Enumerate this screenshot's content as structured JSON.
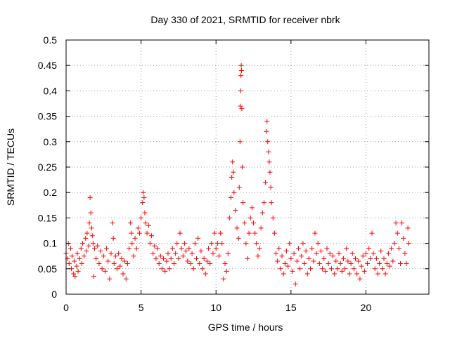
{
  "chart_data": {
    "type": "scatter",
    "title": "Day 330 of 2021, SRMTID for receiver nbrk",
    "xlabel": "GPS time / hours",
    "ylabel": "SRMTID / TECUs",
    "xlim": [
      0,
      24.2
    ],
    "ylim": [
      0,
      0.5
    ],
    "xticks": [
      0,
      5,
      10,
      15,
      20
    ],
    "xtick_labels": [
      "0",
      "5",
      "10",
      "15",
      "20"
    ],
    "yticks": [
      0,
      0.05,
      0.1,
      0.15,
      0.2,
      0.25,
      0.3,
      0.35,
      0.4,
      0.45,
      0.5
    ],
    "ytick_labels": [
      "0",
      "0.05",
      "0.1",
      "0.15",
      "0.2",
      "0.25",
      "0.3",
      "0.35",
      "0.4",
      "0.45",
      "0.5"
    ],
    "grid": true,
    "marker": "+",
    "color": "#ff0000",
    "series": [
      {
        "name": "SRMTID",
        "points": [
          [
            0.0,
            0.08
          ],
          [
            0.1,
            0.07
          ],
          [
            0.15,
            0.1
          ],
          [
            0.2,
            0.06
          ],
          [
            0.3,
            0.09
          ],
          [
            0.35,
            0.05
          ],
          [
            0.4,
            0.075
          ],
          [
            0.5,
            0.04
          ],
          [
            0.55,
            0.065
          ],
          [
            0.6,
            0.035
          ],
          [
            0.7,
            0.055
          ],
          [
            0.75,
            0.08
          ],
          [
            0.8,
            0.045
          ],
          [
            0.9,
            0.07
          ],
          [
            1.0,
            0.09
          ],
          [
            1.05,
            0.06
          ],
          [
            1.1,
            0.1
          ],
          [
            1.2,
            0.075
          ],
          [
            1.3,
            0.11
          ],
          [
            1.35,
            0.085
          ],
          [
            1.4,
            0.12
          ],
          [
            1.5,
            0.095
          ],
          [
            1.55,
            0.14
          ],
          [
            1.6,
            0.19
          ],
          [
            1.65,
            0.16
          ],
          [
            1.7,
            0.13
          ],
          [
            1.75,
            0.115
          ],
          [
            1.8,
            0.1
          ],
          [
            1.85,
            0.035
          ],
          [
            1.9,
            0.09
          ],
          [
            2.0,
            0.07
          ],
          [
            2.1,
            0.095
          ],
          [
            2.2,
            0.06
          ],
          [
            2.3,
            0.085
          ],
          [
            2.4,
            0.05
          ],
          [
            2.5,
            0.075
          ],
          [
            2.6,
            0.045
          ],
          [
            2.7,
            0.09
          ],
          [
            2.8,
            0.065
          ],
          [
            2.9,
            0.03
          ],
          [
            3.0,
            0.08
          ],
          [
            3.1,
            0.14
          ],
          [
            3.15,
            0.11
          ],
          [
            3.2,
            0.06
          ],
          [
            3.3,
            0.075
          ],
          [
            3.4,
            0.05
          ],
          [
            3.5,
            0.08
          ],
          [
            3.6,
            0.055
          ],
          [
            3.7,
            0.07
          ],
          [
            3.8,
            0.04
          ],
          [
            3.9,
            0.065
          ],
          [
            4.0,
            0.03
          ],
          [
            4.1,
            0.06
          ],
          [
            4.2,
            0.09
          ],
          [
            4.3,
            0.14
          ],
          [
            4.35,
            0.12
          ],
          [
            4.4,
            0.1
          ],
          [
            4.5,
            0.075
          ],
          [
            4.6,
            0.11
          ],
          [
            4.7,
            0.09
          ],
          [
            4.8,
            0.13
          ],
          [
            4.9,
            0.12
          ],
          [
            5.0,
            0.15
          ],
          [
            5.1,
            0.18
          ],
          [
            5.15,
            0.2
          ],
          [
            5.2,
            0.19
          ],
          [
            5.25,
            0.16
          ],
          [
            5.3,
            0.14
          ],
          [
            5.4,
            0.12
          ],
          [
            5.5,
            0.135
          ],
          [
            5.6,
            0.1
          ],
          [
            5.7,
            0.115
          ],
          [
            5.8,
            0.08
          ],
          [
            5.9,
            0.095
          ],
          [
            6.0,
            0.07
          ],
          [
            6.1,
            0.09
          ],
          [
            6.2,
            0.06
          ],
          [
            6.3,
            0.075
          ],
          [
            6.4,
            0.05
          ],
          [
            6.5,
            0.07
          ],
          [
            6.6,
            0.045
          ],
          [
            6.7,
            0.065
          ],
          [
            6.8,
            0.08
          ],
          [
            6.9,
            0.05
          ],
          [
            7.0,
            0.07
          ],
          [
            7.1,
            0.09
          ],
          [
            7.2,
            0.06
          ],
          [
            7.3,
            0.08
          ],
          [
            7.4,
            0.1
          ],
          [
            7.5,
            0.07
          ],
          [
            7.6,
            0.12
          ],
          [
            7.7,
            0.09
          ],
          [
            7.8,
            0.075
          ],
          [
            7.9,
            0.1
          ],
          [
            8.0,
            0.085
          ],
          [
            8.1,
            0.065
          ],
          [
            8.2,
            0.09
          ],
          [
            8.3,
            0.06
          ],
          [
            8.4,
            0.08
          ],
          [
            8.5,
            0.05
          ],
          [
            8.6,
            0.1
          ],
          [
            8.7,
            0.07
          ],
          [
            8.8,
            0.11
          ],
          [
            8.9,
            0.06
          ],
          [
            9.0,
            0.085
          ],
          [
            9.1,
            0.05
          ],
          [
            9.2,
            0.07
          ],
          [
            9.3,
            0.04
          ],
          [
            9.4,
            0.065
          ],
          [
            9.5,
            0.09
          ],
          [
            9.6,
            0.06
          ],
          [
            9.7,
            0.1
          ],
          [
            9.8,
            0.08
          ],
          [
            9.9,
            0.12
          ],
          [
            10.0,
            0.09
          ],
          [
            10.1,
            0.1
          ],
          [
            10.2,
            0.075
          ],
          [
            10.3,
            0.12
          ],
          [
            10.4,
            0.1
          ],
          [
            10.5,
            0.03
          ],
          [
            10.6,
            0.06
          ],
          [
            10.7,
            0.045
          ],
          [
            10.8,
            0.08
          ],
          [
            10.9,
            0.15
          ],
          [
            11.0,
            0.19
          ],
          [
            11.05,
            0.23
          ],
          [
            11.1,
            0.26
          ],
          [
            11.15,
            0.24
          ],
          [
            11.2,
            0.2
          ],
          [
            11.3,
            0.165
          ],
          [
            11.4,
            0.13
          ],
          [
            11.5,
            0.11
          ],
          [
            11.55,
            0.21
          ],
          [
            11.6,
            0.3
          ],
          [
            11.62,
            0.37
          ],
          [
            11.64,
            0.4
          ],
          [
            11.66,
            0.43
          ],
          [
            11.68,
            0.45
          ],
          [
            11.7,
            0.44
          ],
          [
            11.72,
            0.365
          ],
          [
            11.75,
            0.25
          ],
          [
            11.8,
            0.18
          ],
          [
            11.9,
            0.14
          ],
          [
            12.0,
            0.1
          ],
          [
            12.1,
            0.07
          ],
          [
            12.2,
            0.12
          ],
          [
            12.3,
            0.15
          ],
          [
            12.4,
            0.17
          ],
          [
            12.5,
            0.14
          ],
          [
            12.6,
            0.12
          ],
          [
            12.7,
            0.1
          ],
          [
            12.8,
            0.075
          ],
          [
            12.9,
            0.09
          ],
          [
            13.0,
            0.13
          ],
          [
            13.1,
            0.16
          ],
          [
            13.2,
            0.18
          ],
          [
            13.3,
            0.22
          ],
          [
            13.35,
            0.32
          ],
          [
            13.4,
            0.34
          ],
          [
            13.45,
            0.3
          ],
          [
            13.5,
            0.28
          ],
          [
            13.55,
            0.26
          ],
          [
            13.6,
            0.24
          ],
          [
            13.65,
            0.21
          ],
          [
            13.7,
            0.18
          ],
          [
            13.8,
            0.15
          ],
          [
            13.9,
            0.12
          ],
          [
            14.0,
            0.08
          ],
          [
            14.1,
            0.065
          ],
          [
            14.2,
            0.09
          ],
          [
            14.3,
            0.05
          ],
          [
            14.4,
            0.075
          ],
          [
            14.5,
            0.04
          ],
          [
            14.6,
            0.06
          ],
          [
            14.7,
            0.085
          ],
          [
            14.8,
            0.055
          ],
          [
            14.9,
            0.1
          ],
          [
            15.0,
            0.07
          ],
          [
            15.1,
            0.045
          ],
          [
            15.2,
            0.08
          ],
          [
            15.3,
            0.02
          ],
          [
            15.4,
            0.065
          ],
          [
            15.5,
            0.09
          ],
          [
            15.6,
            0.05
          ],
          [
            15.7,
            0.075
          ],
          [
            15.8,
            0.1
          ],
          [
            15.9,
            0.06
          ],
          [
            16.0,
            0.085
          ],
          [
            16.1,
            0.04
          ],
          [
            16.2,
            0.07
          ],
          [
            16.3,
            0.05
          ],
          [
            16.4,
            0.09
          ],
          [
            16.5,
            0.065
          ],
          [
            16.6,
            0.12
          ],
          [
            16.7,
            0.08
          ],
          [
            16.8,
            0.1
          ],
          [
            16.9,
            0.06
          ],
          [
            17.0,
            0.085
          ],
          [
            17.1,
            0.05
          ],
          [
            17.2,
            0.07
          ],
          [
            17.3,
            0.045
          ],
          [
            17.4,
            0.09
          ],
          [
            17.5,
            0.06
          ],
          [
            17.6,
            0.08
          ],
          [
            17.7,
            0.05
          ],
          [
            17.8,
            0.075
          ],
          [
            17.9,
            0.04
          ],
          [
            18.0,
            0.065
          ],
          [
            18.1,
            0.05
          ],
          [
            18.2,
            0.08
          ],
          [
            18.3,
            0.06
          ],
          [
            18.4,
            0.045
          ],
          [
            18.5,
            0.07
          ],
          [
            18.6,
            0.05
          ],
          [
            18.7,
            0.09
          ],
          [
            18.8,
            0.065
          ],
          [
            18.9,
            0.04
          ],
          [
            19.0,
            0.06
          ],
          [
            19.1,
            0.08
          ],
          [
            19.2,
            0.05
          ],
          [
            19.3,
            0.07
          ],
          [
            19.4,
            0.04
          ],
          [
            19.5,
            0.065
          ],
          [
            19.6,
            0.03
          ],
          [
            19.7,
            0.055
          ],
          [
            19.8,
            0.075
          ],
          [
            19.9,
            0.045
          ],
          [
            20.0,
            0.08
          ],
          [
            20.1,
            0.06
          ],
          [
            20.2,
            0.09
          ],
          [
            20.3,
            0.07
          ],
          [
            20.4,
            0.12
          ],
          [
            20.5,
            0.08
          ],
          [
            20.6,
            0.05
          ],
          [
            20.7,
            0.07
          ],
          [
            20.8,
            0.04
          ],
          [
            20.9,
            0.06
          ],
          [
            21.0,
            0.085
          ],
          [
            21.1,
            0.05
          ],
          [
            21.2,
            0.07
          ],
          [
            21.3,
            0.04
          ],
          [
            21.4,
            0.06
          ],
          [
            21.5,
            0.08
          ],
          [
            21.6,
            0.055
          ],
          [
            21.7,
            0.09
          ],
          [
            21.8,
            0.065
          ],
          [
            21.9,
            0.1
          ],
          [
            22.0,
            0.14
          ],
          [
            22.1,
            0.12
          ],
          [
            22.2,
            0.09
          ],
          [
            22.3,
            0.06
          ],
          [
            22.4,
            0.14
          ],
          [
            22.5,
            0.11
          ],
          [
            22.6,
            0.08
          ],
          [
            22.7,
            0.06
          ],
          [
            22.8,
            0.13
          ],
          [
            22.85,
            0.1
          ]
        ]
      }
    ]
  }
}
